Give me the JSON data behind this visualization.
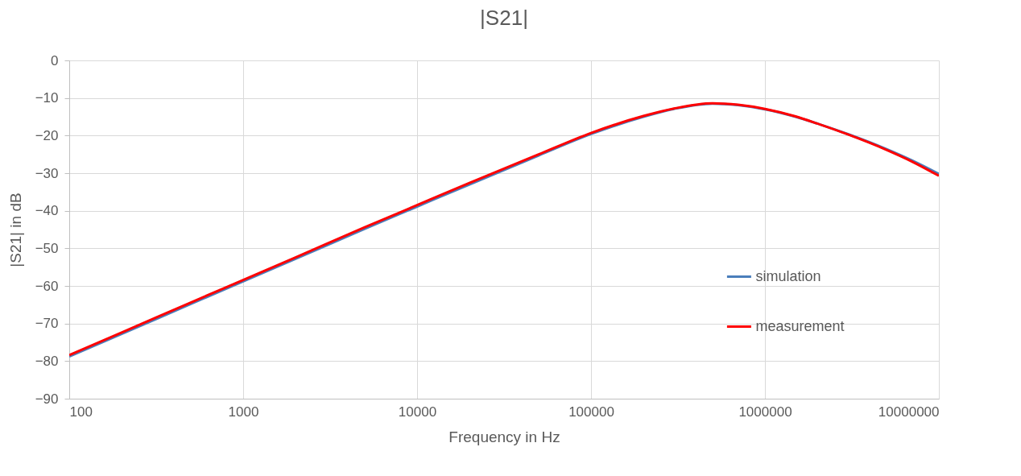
{
  "chart_data": {
    "type": "line",
    "title": "|S21|",
    "xlabel": "Frequency in Hz",
    "ylabel": "|S21| in dB",
    "log": "x",
    "grid": true,
    "legend": "right",
    "xlim": [
      100,
      10000000
    ],
    "xticks": [
      100,
      1000,
      10000,
      100000,
      1000000,
      10000000
    ],
    "ylim": [
      -90,
      0
    ],
    "yticks": [
      -90,
      -80,
      -70,
      -60,
      -50,
      -40,
      -30,
      -20,
      -10,
      0
    ],
    "x": [
      100,
      200,
      500,
      1000,
      2000,
      5000,
      10000,
      20000,
      50000,
      100000,
      200000,
      300000,
      500000,
      700000,
      1000000,
      1500000,
      2000000,
      3000000,
      5000000,
      7000000,
      10000000
    ],
    "series": [
      {
        "name": "simulation",
        "color": "#4a7ebb",
        "values": [
          -78.8,
          -72.8,
          -64.8,
          -58.8,
          -52.8,
          -44.8,
          -38.9,
          -33.0,
          -25.3,
          -19.6,
          -15.0,
          -12.9,
          -11.5,
          -11.9,
          -13.0,
          -15.0,
          -16.8,
          -19.6,
          -23.6,
          -26.6,
          -30.2
        ]
      },
      {
        "name": "measurement",
        "color": "#ff0000",
        "values": [
          -78.4,
          -72.4,
          -64.4,
          -58.4,
          -52.4,
          -44.4,
          -38.5,
          -32.6,
          -25.0,
          -19.3,
          -14.8,
          -12.8,
          -11.4,
          -11.8,
          -12.9,
          -14.9,
          -16.8,
          -19.7,
          -23.8,
          -26.9,
          -30.7
        ]
      }
    ]
  }
}
